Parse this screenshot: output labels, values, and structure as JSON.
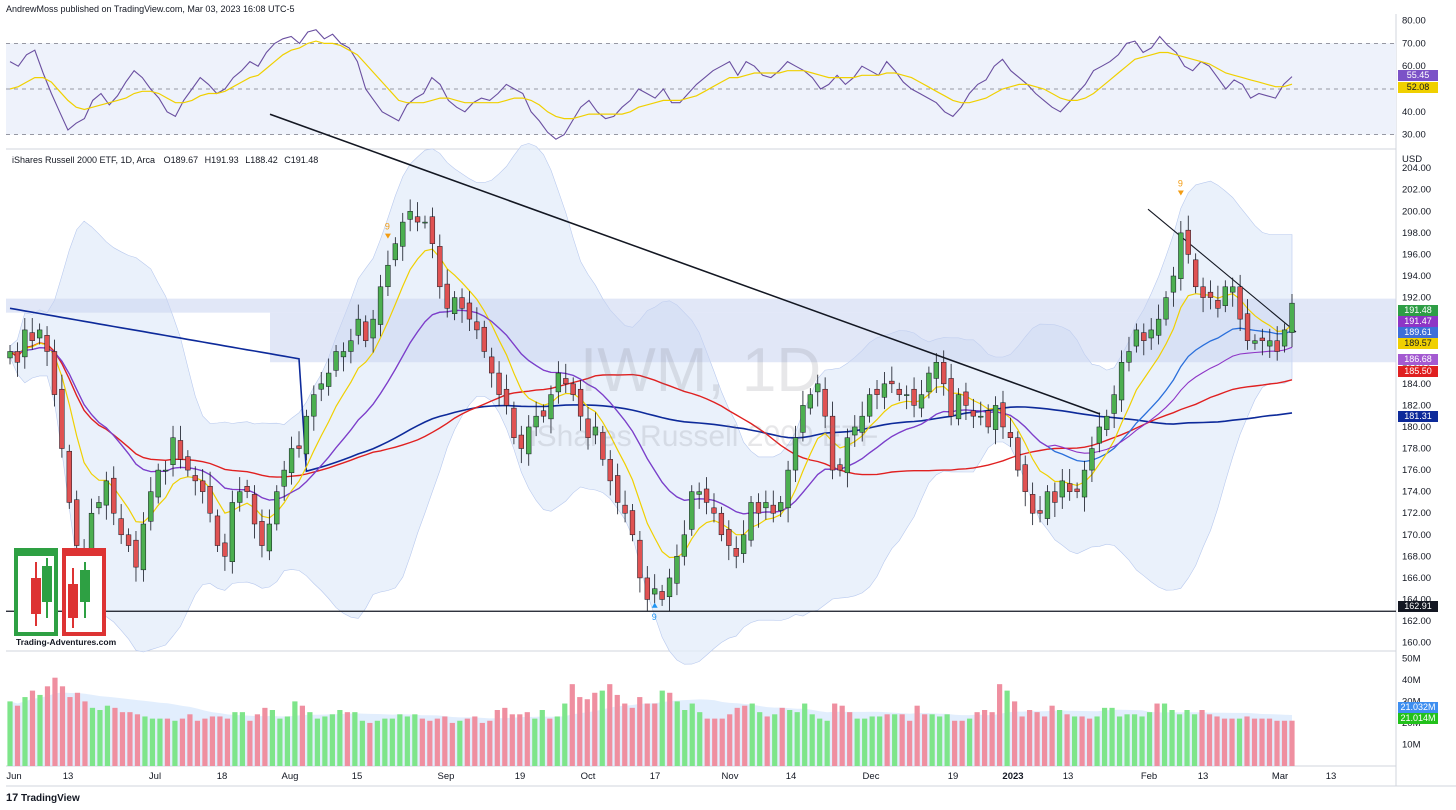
{
  "header": {
    "published_by": "AndrewMoss published on TradingView.com, Mar 03, 2023 16:08 UTC-5",
    "symbol_line": "iShares Russell 2000 ETF, 1D, Arca",
    "ohlc": {
      "o_label": "O",
      "o": "189.67",
      "h_label": "H",
      "h": "191.93",
      "l_label": "L",
      "l": "188.42",
      "c_label": "C",
      "c": "191.48"
    }
  },
  "watermark": {
    "ticker": "IWM, 1D",
    "name": "iShares Russell 2000 ETF"
  },
  "logo_caption": "Trading-Adventures.com",
  "footer": {
    "brand": "TradingView",
    "logo_glyph": "17"
  },
  "colors": {
    "up": "#4caf50",
    "down": "#e05252",
    "vol_up": "#7ee58a",
    "vol_down": "#ef8fa0",
    "ema_fast": "#f0d000",
    "ema_mid": "#2a6fdb",
    "sma_red": "#e02020",
    "sma_navy": "#0d2a9a",
    "purple": "#8e35c6",
    "rsi_line": "#6a4fa0",
    "rsi_signal": "#f0d000",
    "band": "#e3ecf9",
    "zone": "#c8d3f0"
  },
  "price_tags": [
    {
      "value": "191.48",
      "color": "#2e9e46"
    },
    {
      "value": "191.47",
      "color": "#8e35c6"
    },
    {
      "value": "189.61",
      "color": "#3d6fd9"
    },
    {
      "value": "189.57",
      "color": "#f0d000",
      "text_color": "#131722"
    },
    {
      "value": "186.68",
      "color": "#a45ad1"
    },
    {
      "value": "185.50",
      "color": "#e02020"
    },
    {
      "value": "181.31",
      "color": "#0d2a9a"
    },
    {
      "value": "162.91",
      "color": "#131722"
    }
  ],
  "rsi_tags": [
    {
      "value": "55.45",
      "color": "#7b52c7"
    },
    {
      "value": "52.08",
      "color": "#f0d000",
      "text_color": "#131722"
    }
  ],
  "volume_tags": [
    {
      "value": "21.032M",
      "color": "#3d8ef0"
    },
    {
      "value": "21.014M",
      "color": "#22c11b"
    }
  ],
  "chart_data": [
    {
      "type": "line",
      "panel": "RSI",
      "y_ticks": [
        "80.00",
        "70.00",
        "60.00",
        "50.00",
        "40.00",
        "30.00"
      ],
      "ylim": [
        25,
        82
      ],
      "dashed_levels": [
        70,
        50,
        30
      ],
      "series": [
        {
          "values": [
            62,
            60,
            65,
            67,
            57,
            48,
            40,
            32,
            35,
            37,
            45,
            48,
            43,
            47,
            53,
            58,
            55,
            50,
            46,
            40,
            38,
            45,
            50,
            55,
            52,
            48,
            50,
            55,
            58,
            62,
            60,
            66,
            70,
            72,
            73,
            70,
            75,
            76,
            72,
            74,
            70,
            68,
            62,
            50,
            45,
            40,
            38,
            36,
            43,
            46,
            48,
            55,
            52,
            45,
            42,
            40,
            44,
            46,
            45,
            48,
            52,
            50,
            48,
            40,
            36,
            31,
            28,
            30,
            36,
            42,
            45,
            40,
            37,
            38,
            42,
            45,
            50,
            48,
            46,
            50,
            44,
            44,
            48,
            52,
            55,
            58,
            60,
            62,
            56,
            62,
            60,
            56,
            55,
            58,
            62,
            60,
            58,
            55,
            50,
            52,
            56,
            52,
            55,
            60,
            58,
            56,
            62,
            58,
            53,
            50,
            48,
            46,
            44,
            40,
            38,
            42,
            48,
            52,
            54,
            60,
            63,
            58,
            55,
            52,
            48,
            45,
            42,
            40,
            44,
            48,
            52,
            58,
            60,
            62,
            65,
            70,
            71,
            66,
            68,
            73,
            69,
            66,
            60,
            58,
            62,
            60,
            55,
            50,
            54,
            52,
            46,
            48,
            47,
            46,
            52,
            55.45
          ]
        },
        {
          "values": [
            50,
            51,
            53,
            55,
            55,
            53,
            49,
            45,
            42,
            41,
            42,
            43,
            44,
            45,
            46,
            48,
            49,
            49,
            48,
            46,
            44,
            44,
            45,
            47,
            48,
            48,
            49,
            51,
            53,
            55,
            56,
            59,
            62,
            65,
            67,
            68,
            70,
            71,
            70,
            70,
            69,
            67,
            65,
            61,
            57,
            53,
            49,
            45,
            44,
            44,
            44,
            45,
            46,
            46,
            45,
            44,
            44,
            44,
            44,
            44,
            45,
            46,
            46,
            45,
            43,
            40,
            38,
            37,
            37,
            38,
            39,
            39,
            39,
            39,
            39,
            40,
            42,
            43,
            44,
            45,
            45,
            45,
            46,
            47,
            49,
            51,
            53,
            55,
            55,
            56,
            57,
            57,
            57,
            57,
            58,
            58,
            58,
            57,
            56,
            55,
            55,
            55,
            55,
            56,
            56,
            56,
            57,
            57,
            56,
            55,
            53,
            51,
            49,
            47,
            45,
            44,
            44,
            45,
            46,
            48,
            50,
            51,
            52,
            52,
            51,
            50,
            48,
            46,
            45,
            45,
            46,
            48,
            51,
            54,
            57,
            60,
            63,
            64,
            65,
            66,
            66,
            65,
            64,
            63,
            62,
            61,
            59,
            57,
            56,
            55,
            54,
            53,
            52,
            51,
            51,
            52.08
          ]
        }
      ]
    },
    {
      "type": "candlestick",
      "panel": "price",
      "title": "iShares Russell 2000 ETF, 1D, Arca",
      "y_ticks": [
        "204.00",
        "202.00",
        "200.00",
        "198.00",
        "196.00",
        "194.00",
        "192.00",
        "190.00",
        "188.00",
        "186.00",
        "184.00",
        "182.00",
        "180.00",
        "178.00",
        "176.00",
        "174.00",
        "172.00",
        "170.00",
        "168.00",
        "166.00",
        "164.00",
        "162.00",
        "160.00"
      ],
      "ylim": [
        159.5,
        205.5
      ],
      "y_unit": "USD",
      "x_labels": [
        "Jun",
        "13",
        "Jul",
        "18",
        "Aug",
        "15",
        "Sep",
        "19",
        "Oct",
        "17",
        "Nov",
        "14",
        "Dec",
        "19",
        "2023",
        "13",
        "Feb",
        "13",
        "Mar",
        "13"
      ],
      "closes": [
        187,
        186,
        189,
        188,
        189,
        187,
        183,
        178,
        173,
        169,
        168,
        172,
        173,
        175,
        172,
        170,
        169,
        167,
        171,
        174,
        176,
        176,
        179,
        177,
        176,
        175,
        174,
        172,
        169,
        168,
        173,
        174,
        174,
        171,
        169,
        171,
        174,
        176,
        178,
        178,
        181,
        183,
        184,
        185,
        187,
        187,
        188,
        190,
        188,
        190,
        193,
        195,
        197,
        199,
        200,
        199,
        199,
        197,
        193,
        191,
        192,
        191,
        190,
        189,
        187,
        185,
        183,
        182,
        179,
        178,
        180,
        181,
        181,
        183,
        185,
        184,
        183,
        181,
        179,
        180,
        177,
        175,
        173,
        172,
        170,
        166,
        164,
        165,
        164,
        166,
        168,
        170,
        174,
        174,
        173,
        172,
        170,
        169,
        168,
        170,
        173,
        172,
        173,
        172,
        173,
        176,
        179,
        182,
        183,
        184,
        181,
        176,
        176,
        179,
        180,
        181,
        183,
        183,
        184,
        184,
        183,
        183,
        182,
        183,
        185,
        186,
        184,
        181,
        183,
        182,
        181,
        181,
        180,
        182,
        180,
        179,
        176,
        174,
        172,
        172,
        174,
        173,
        175,
        174,
        174,
        176,
        178,
        180,
        181,
        183,
        186,
        187,
        189,
        188,
        189,
        190,
        192,
        194,
        198,
        196,
        193,
        192,
        192,
        191,
        193,
        193,
        190,
        188,
        188,
        188,
        188,
        187,
        189,
        191.48
      ]
    },
    {
      "type": "bar",
      "panel": "volume",
      "y_ticks": [
        "50M",
        "40M",
        "30M",
        "20M",
        "10M"
      ],
      "ylim": [
        0,
        52
      ],
      "values": [
        30,
        28,
        32,
        35,
        33,
        37,
        41,
        37,
        32,
        34,
        30,
        27,
        26,
        28,
        27,
        25,
        25,
        24,
        23,
        22,
        22,
        22,
        21,
        22,
        24,
        21,
        22,
        23,
        23,
        22,
        25,
        25,
        21,
        24,
        27,
        26,
        22,
        23,
        30,
        28,
        25,
        22,
        23,
        24,
        26,
        25,
        25,
        21,
        20,
        21,
        22,
        22,
        24,
        23,
        24,
        22,
        21,
        22,
        23,
        20,
        21,
        22,
        23,
        20,
        21,
        26,
        27,
        24,
        24,
        25,
        22,
        26,
        22,
        23,
        29,
        38,
        32,
        31,
        34,
        35,
        38,
        33,
        29,
        27,
        32,
        29,
        29,
        35,
        34,
        30,
        26,
        29,
        25,
        22,
        22,
        22,
        24,
        27,
        28,
        29,
        25,
        23,
        24,
        27,
        26,
        25,
        29,
        24,
        22,
        21,
        29,
        28,
        25,
        22,
        22,
        23,
        23,
        24,
        24,
        24,
        21,
        28,
        24,
        24,
        23,
        24,
        21,
        21,
        22,
        25,
        26,
        25,
        38,
        35,
        30,
        23,
        26,
        25,
        23,
        28,
        26,
        24,
        23,
        23,
        22,
        23,
        27,
        27,
        23,
        24,
        24,
        23,
        25,
        29,
        29,
        26,
        24,
        26,
        24,
        26,
        24,
        23,
        22,
        22,
        22,
        23,
        22,
        22,
        22,
        21,
        21,
        21.032
      ],
      "up": [
        1,
        0,
        1,
        0,
        1,
        0,
        0,
        0,
        0,
        0,
        0,
        1,
        1,
        1,
        0,
        0,
        0,
        0,
        1,
        1,
        1,
        0,
        1,
        0,
        0,
        0,
        0,
        0,
        0,
        0,
        1,
        1,
        0,
        0,
        0,
        1,
        1,
        1,
        1,
        0,
        1,
        1,
        1,
        1,
        1,
        0,
        1,
        1,
        0,
        1,
        1,
        1,
        1,
        1,
        1,
        0,
        0,
        0,
        0,
        0,
        1,
        0,
        0,
        0,
        0,
        0,
        0,
        0,
        0,
        0,
        1,
        1,
        0,
        1,
        1,
        0,
        0,
        0,
        0,
        1,
        0,
        0,
        0,
        0,
        0,
        0,
        0,
        1,
        0,
        1,
        1,
        1,
        1,
        0,
        0,
        0,
        0,
        0,
        0,
        1,
        1,
        0,
        1,
        0,
        1,
        1,
        1,
        1,
        1,
        1,
        0,
        0,
        0,
        1,
        1,
        1,
        1,
        0,
        1,
        0,
        0,
        0,
        0,
        1,
        1,
        1,
        0,
        0,
        1,
        0,
        0,
        0,
        0,
        1,
        0,
        0,
        0,
        0,
        0,
        0,
        1,
        0,
        1,
        0,
        0,
        1,
        1,
        1,
        1,
        1,
        1,
        1,
        1,
        0,
        1,
        1,
        1,
        1,
        1,
        0,
        0,
        0,
        0,
        0,
        1,
        0,
        0,
        0,
        0,
        0,
        0,
        0,
        1,
        1
      ]
    }
  ]
}
